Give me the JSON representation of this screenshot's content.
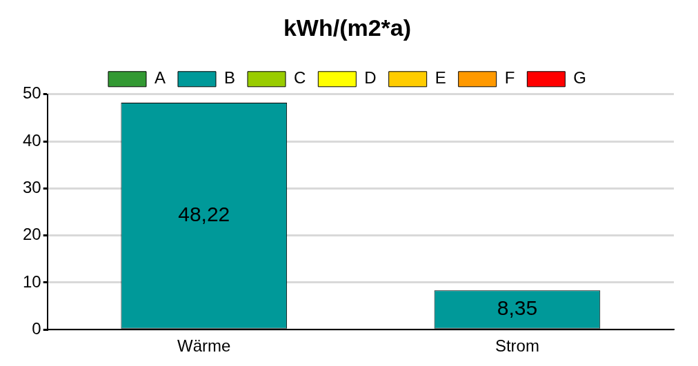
{
  "chart_data": {
    "type": "bar",
    "title": "kWh/(m2*a)",
    "categories": [
      "Wärme",
      "Strom"
    ],
    "series": [
      {
        "name": "A",
        "color": "#339933",
        "values": [
          null,
          null
        ]
      },
      {
        "name": "B",
        "color": "#009999",
        "values": [
          48.22,
          8.35
        ],
        "value_labels": [
          "48,22",
          "8,35"
        ]
      },
      {
        "name": "C",
        "color": "#99cc00",
        "values": [
          null,
          null
        ]
      },
      {
        "name": "D",
        "color": "#ffff00",
        "values": [
          null,
          null
        ]
      },
      {
        "name": "E",
        "color": "#ffcc00",
        "values": [
          null,
          null
        ]
      },
      {
        "name": "F",
        "color": "#ff9900",
        "values": [
          null,
          null
        ]
      },
      {
        "name": "G",
        "color": "#ff0000",
        "values": [
          null,
          null
        ]
      }
    ],
    "ylim": [
      0,
      50
    ],
    "yticks": [
      0,
      10,
      20,
      30,
      40,
      50
    ],
    "grid": true,
    "legend": "top",
    "data_labels": true
  }
}
